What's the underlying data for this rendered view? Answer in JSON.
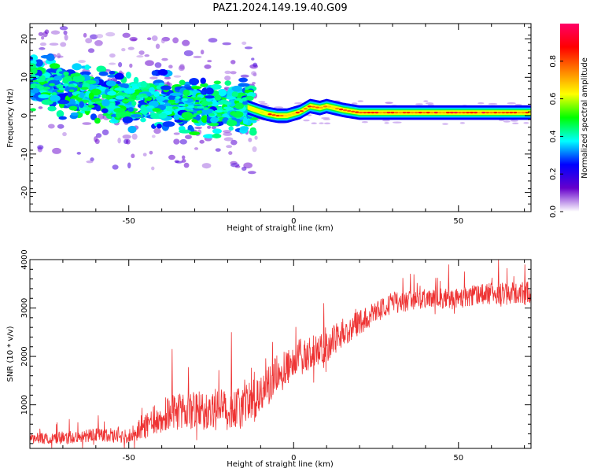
{
  "title": "PAZ1.2024.149.19.40.G09",
  "chart_data": [
    {
      "type": "heatmap",
      "xlabel": "Height of straight line (km)",
      "ylabel": "Frequency (Hz)",
      "xlim": [
        -80,
        72
      ],
      "ylim": [
        -25,
        24
      ],
      "xticks": [
        -50,
        0,
        50
      ],
      "yticks": [
        -20,
        -10,
        0,
        10,
        20
      ],
      "colorbar": {
        "label": "Normalized spectral amplitude",
        "range": [
          0,
          1
        ],
        "ticks": [
          0.0,
          0.2,
          0.4,
          0.6,
          0.8
        ],
        "tick_labels": [
          "0.0",
          "0.2",
          "0.4",
          "0.6",
          "0.8"
        ],
        "colormap": [
          "#ffffff",
          "#6600cc",
          "#0000ff",
          "#00ffff",
          "#00ff00",
          "#ffff00",
          "#ff8000",
          "#ff0000",
          "#ff0066"
        ]
      },
      "ridge": {
        "x": [
          -80,
          -75,
          -70,
          -65,
          -60,
          -55,
          -50,
          -45,
          -40,
          -35,
          -30,
          -25,
          -20,
          -15,
          -10,
          -8,
          -5,
          -2,
          0,
          2,
          5,
          8,
          10,
          15,
          20,
          30,
          40,
          50,
          60,
          72
        ],
        "y": [
          9.5,
          8,
          7,
          6,
          5,
          4,
          3.5,
          4,
          4,
          3,
          3,
          2,
          2,
          2.5,
          1,
          0.5,
          0,
          0,
          0.5,
          1,
          2.5,
          2,
          2.5,
          1.5,
          0.8,
          0.8,
          0.8,
          0.8,
          0.8,
          0.8
        ],
        "peak_amplitude": [
          0.5,
          0.5,
          0.45,
          0.4,
          0.45,
          0.4,
          0.35,
          0.5,
          0.55,
          0.55,
          0.5,
          0.45,
          0.5,
          0.55,
          0.7,
          0.9,
          0.95,
          0.9,
          0.85,
          0.9,
          0.95,
          0.9,
          0.85,
          0.9,
          0.95,
          0.95,
          0.95,
          0.95,
          0.95,
          0.95
        ]
      }
    },
    {
      "type": "line",
      "xlabel": "Height of straight line (km)",
      "ylabel": "SNR (10 * v/v)",
      "xlim": [
        -80,
        72
      ],
      "ylim": [
        100,
        4000
      ],
      "xticks": [
        -50,
        0,
        50
      ],
      "yticks": [
        1000,
        2000,
        3000,
        4000
      ],
      "color": "#ee3333",
      "trend": {
        "x": [
          -80,
          -70,
          -60,
          -50,
          -45,
          -40,
          -30,
          -20,
          -15,
          -10,
          -5,
          0,
          5,
          10,
          15,
          20,
          25,
          30,
          40,
          50,
          60,
          72
        ],
        "y": [
          300,
          320,
          380,
          350,
          550,
          800,
          900,
          900,
          950,
          1200,
          1600,
          1900,
          2100,
          2200,
          2500,
          2700,
          2900,
          3100,
          3200,
          3200,
          3300,
          3300
        ]
      },
      "noise_amplitude": {
        "x": [
          -80,
          -50,
          -40,
          -20,
          0,
          20,
          40,
          72
        ],
        "y": [
          120,
          150,
          350,
          450,
          400,
          250,
          200,
          250
        ]
      },
      "spikes": [
        {
          "x": -37,
          "y": 2150
        },
        {
          "x": -19,
          "y": 2500
        },
        {
          "x": 9,
          "y": 3100
        },
        {
          "x": 62,
          "y": 4000
        },
        {
          "x": 70,
          "y": 3900
        }
      ],
      "samples": 1400
    }
  ]
}
